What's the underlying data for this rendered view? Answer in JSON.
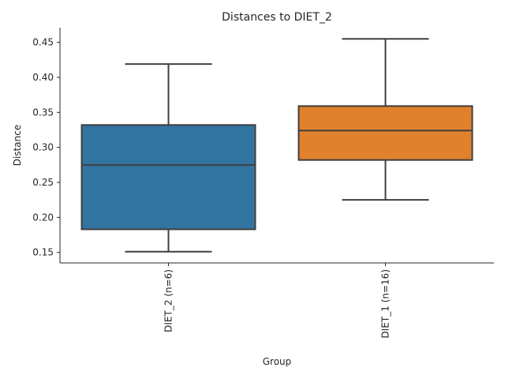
{
  "chart_data": {
    "type": "box",
    "title": "Distances to DIET_2",
    "xlabel": "Group",
    "ylabel": "Distance",
    "ylim": [
      0.135,
      0.471
    ],
    "yticks": [
      0.15,
      0.2,
      0.25,
      0.3,
      0.35,
      0.4,
      0.45
    ],
    "ytick_labels": [
      "0.15",
      "0.20",
      "0.25",
      "0.30",
      "0.35",
      "0.40",
      "0.45"
    ],
    "categories": [
      "DIET_2 (n=6)",
      "DIET_1 (n=16)"
    ],
    "boxes": [
      {
        "name": "DIET_2 (n=6)",
        "min": 0.151,
        "q1": 0.183,
        "median": 0.275,
        "q3": 0.332,
        "max": 0.419,
        "color": "#3274a1"
      },
      {
        "name": "DIET_1 (n=16)",
        "min": 0.225,
        "q1": 0.282,
        "median": 0.324,
        "q3": 0.359,
        "max": 0.455,
        "color": "#e1812c"
      }
    ],
    "grid": false,
    "legend": "none"
  }
}
